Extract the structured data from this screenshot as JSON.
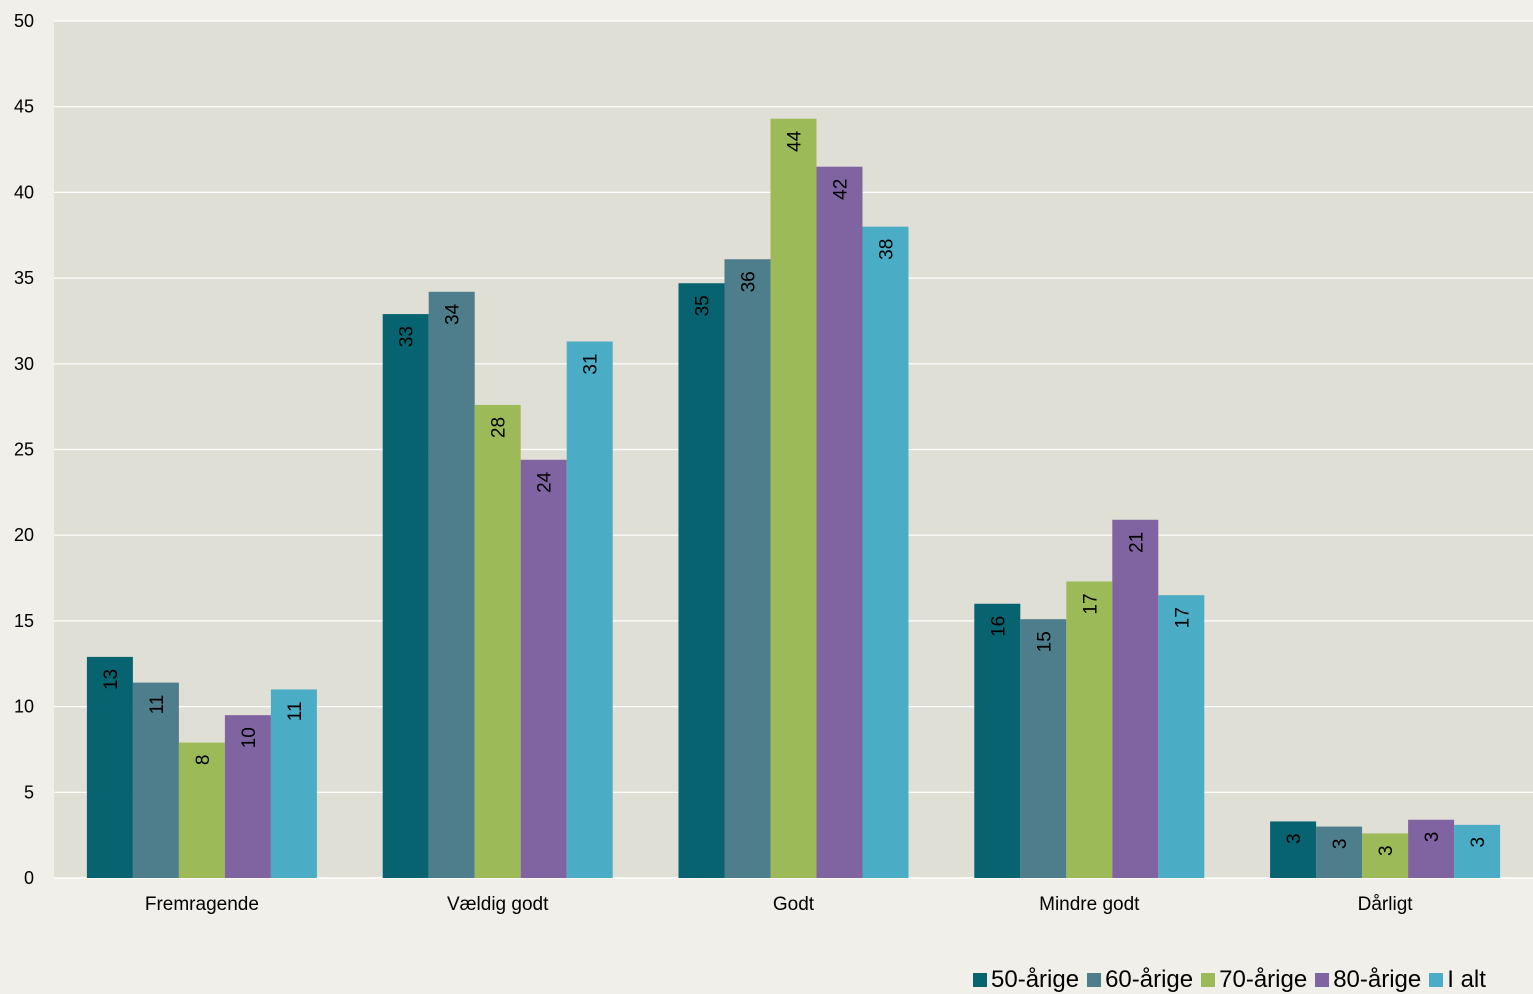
{
  "chart_data": {
    "type": "bar",
    "categories": [
      "Fremragende",
      "Vældig godt",
      "Godt",
      "Mindre godt",
      "Dårligt"
    ],
    "series": [
      {
        "name": "50-årige",
        "color": "#06636f",
        "values": [
          12.9,
          32.9,
          34.7,
          16.0,
          3.3
        ],
        "labels": [
          "13",
          "33",
          "35",
          "16",
          "3"
        ]
      },
      {
        "name": "60-årige",
        "color": "#4e7d8c",
        "values": [
          11.4,
          34.2,
          36.1,
          15.1,
          3.0
        ],
        "labels": [
          "11",
          "34",
          "36",
          "15",
          "3"
        ]
      },
      {
        "name": "70-årige",
        "color": "#9dba58",
        "values": [
          7.9,
          27.6,
          44.3,
          17.3,
          2.6
        ],
        "labels": [
          "8",
          "28",
          "44",
          "17",
          "3"
        ]
      },
      {
        "name": "80-årige",
        "color": "#8064a2",
        "values": [
          9.5,
          24.4,
          41.5,
          20.9,
          3.4
        ],
        "labels": [
          "10",
          "24",
          "42",
          "21",
          "3"
        ]
      },
      {
        "name": "I alt",
        "color": "#4bacc6",
        "values": [
          11.0,
          31.3,
          38.0,
          16.5,
          3.1
        ],
        "labels": [
          "11",
          "31",
          "38",
          "17",
          "3"
        ]
      }
    ],
    "yticks": [
      "0",
      "5",
      "10",
      "15",
      "20",
      "25",
      "30",
      "35",
      "40",
      "45",
      "50"
    ],
    "ylim": [
      0,
      50
    ],
    "grid": true,
    "legend_position": "bottom-right",
    "plot_background": "#e0dfd5",
    "page_background": "#f0efe9"
  }
}
